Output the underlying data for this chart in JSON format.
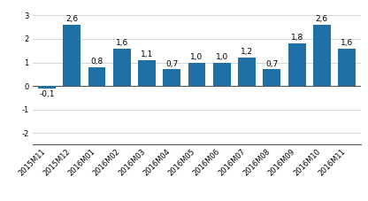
{
  "categories": [
    "2015M11",
    "2015M12",
    "2016M01",
    "2016M02",
    "2016M03",
    "2016M04",
    "2016M05",
    "2016M06",
    "2016M07",
    "2016M08",
    "2016M09",
    "2016M10",
    "2016M11"
  ],
  "values": [
    -0.1,
    2.6,
    0.8,
    1.6,
    1.1,
    0.7,
    1.0,
    1.0,
    1.2,
    0.7,
    1.8,
    2.6,
    1.6
  ],
  "bar_color": "#2070A8",
  "ylim": [
    -2.5,
    3.4
  ],
  "yticks": [
    -2,
    -1,
    0,
    1,
    2,
    3
  ],
  "label_fontsize": 6.5,
  "tick_fontsize": 6.0,
  "background_color": "#ffffff",
  "grid_color": "#d0d0d0"
}
